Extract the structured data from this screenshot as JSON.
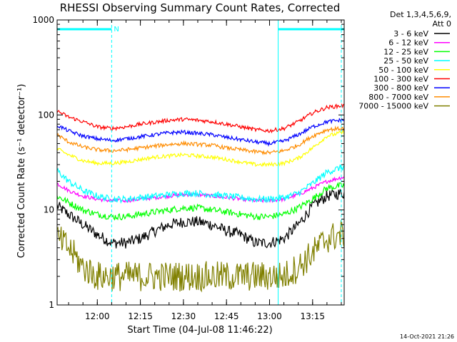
{
  "chart_data": {
    "type": "line",
    "title": "RHESSI Observing Summary Count Rates, Corrected",
    "xlabel": "Start Time (04-Jul-08 11:46:22)",
    "ylabel": "Corrected Count Rate (s⁻¹ detector⁻¹)",
    "ylim": [
      1,
      1000
    ],
    "yscale": "log",
    "xlim": [
      "11:46",
      "13:26"
    ],
    "xtick_labels": [
      "12:00",
      "12:15",
      "12:30",
      "12:45",
      "13:00",
      "13:15"
    ],
    "ytick_labels": [
      "1",
      "10",
      "100",
      "1000"
    ],
    "legend_header": [
      "Det 1,3,4,5,6,9,",
      "Att 0"
    ],
    "footer_timestamp": "14-Oct-2021 21:26",
    "annotations": [
      {
        "text": "N",
        "start": "11:46",
        "end": "12:05",
        "meaning": "night"
      },
      {
        "text": "",
        "start": "13:03",
        "end": "13:26"
      }
    ],
    "vertical_markers": [
      "11:46",
      "12:05",
      "13:03",
      "13:25"
    ],
    "x": [
      "11:46",
      "11:50",
      "11:55",
      "12:00",
      "12:05",
      "12:10",
      "12:15",
      "12:20",
      "12:25",
      "12:30",
      "12:35",
      "12:40",
      "12:45",
      "12:50",
      "12:55",
      "13:00",
      "13:05",
      "13:10",
      "13:15",
      "13:20",
      "13:25"
    ],
    "series": [
      {
        "name": "3 - 6 keV",
        "color": "#000000",
        "values": [
          11,
          9,
          7,
          5.5,
          4.5,
          4.5,
          5,
          6,
          7,
          7.5,
          7.5,
          7,
          6,
          5.5,
          4.5,
          4.5,
          5,
          7,
          11,
          14,
          15
        ]
      },
      {
        "name": "6 - 12 keV",
        "color": "#ff00ff",
        "values": [
          19,
          16,
          14,
          13,
          12.5,
          12.5,
          13,
          13.5,
          14,
          14.5,
          14.5,
          14,
          13.5,
          13,
          12.5,
          12.5,
          13,
          14.5,
          17,
          20,
          22
        ]
      },
      {
        "name": "12 - 25 keV",
        "color": "#00ff00",
        "values": [
          14,
          12,
          10,
          9,
          8.5,
          8.5,
          9,
          9.5,
          10,
          10.5,
          10.5,
          10,
          9.5,
          9,
          8.5,
          8.5,
          9,
          10.5,
          13,
          17,
          18
        ]
      },
      {
        "name": "25 - 50 keV",
        "color": "#00ffff",
        "values": [
          26,
          20,
          16,
          14,
          13,
          13,
          13.5,
          14,
          14.5,
          15,
          15,
          14.5,
          14,
          13.5,
          13,
          13,
          13.5,
          15,
          19,
          25,
          28
        ]
      },
      {
        "name": "50 - 100 keV",
        "color": "#ffff00",
        "values": [
          44,
          38,
          33,
          31,
          31,
          32,
          34,
          36,
          37,
          38,
          37,
          36,
          34,
          32,
          30,
          30,
          31,
          35,
          45,
          60,
          65
        ]
      },
      {
        "name": "100 - 300 keV",
        "color": "#ff0000",
        "values": [
          110,
          95,
          85,
          75,
          72,
          75,
          80,
          84,
          88,
          90,
          88,
          85,
          80,
          75,
          70,
          68,
          72,
          85,
          105,
          120,
          125
        ]
      },
      {
        "name": "300 - 800 keV",
        "color": "#0000ff",
        "values": [
          78,
          68,
          60,
          56,
          54,
          56,
          59,
          62,
          65,
          66,
          64,
          62,
          58,
          55,
          52,
          50,
          53,
          62,
          75,
          85,
          88
        ]
      },
      {
        "name": "800 - 7000 keV",
        "color": "#ff8c00",
        "values": [
          62,
          52,
          46,
          43,
          42,
          43,
          45,
          47,
          49,
          50,
          49,
          48,
          45,
          43,
          41,
          40,
          42,
          48,
          60,
          70,
          72
        ]
      },
      {
        "name": "7000 - 15000 keV",
        "color": "#808000",
        "values": [
          5,
          4,
          2.5,
          2,
          2,
          2,
          2,
          2,
          2,
          2,
          2,
          2,
          2,
          2,
          2,
          2,
          2,
          2.5,
          3.5,
          5,
          5.5
        ]
      }
    ]
  }
}
